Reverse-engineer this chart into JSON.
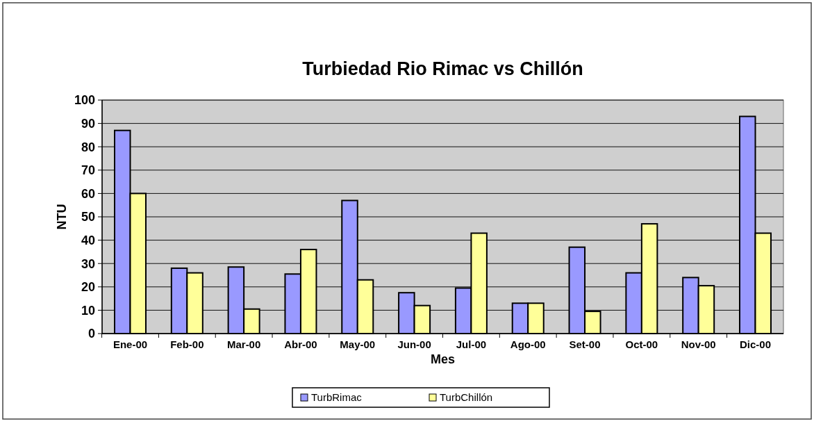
{
  "chart_data": {
    "type": "bar",
    "title": "Turbiedad Rio Rimac vs Chillón",
    "xlabel": "Mes",
    "ylabel": "NTU",
    "categories": [
      "Ene-00",
      "Feb-00",
      "Mar-00",
      "Abr-00",
      "May-00",
      "Jun-00",
      "Jul-00",
      "Ago-00",
      "Set-00",
      "Oct-00",
      "Nov-00",
      "Dic-00"
    ],
    "series": [
      {
        "name": "TurbRimac",
        "color": "#9999ff",
        "values": [
          87,
          28,
          28.5,
          25.5,
          57,
          17.5,
          19.5,
          13,
          37,
          26,
          24,
          93
        ]
      },
      {
        "name": "TurbChillón",
        "color": "#ffff99",
        "values": [
          60,
          26,
          10.5,
          36,
          23,
          12,
          43,
          13,
          9.5,
          47,
          20.5,
          43
        ]
      }
    ],
    "ylim": [
      0,
      100
    ],
    "yticks": [
      0,
      10,
      20,
      30,
      40,
      50,
      60,
      70,
      80,
      90,
      100
    ],
    "grid": "y",
    "legend": "bottom"
  }
}
